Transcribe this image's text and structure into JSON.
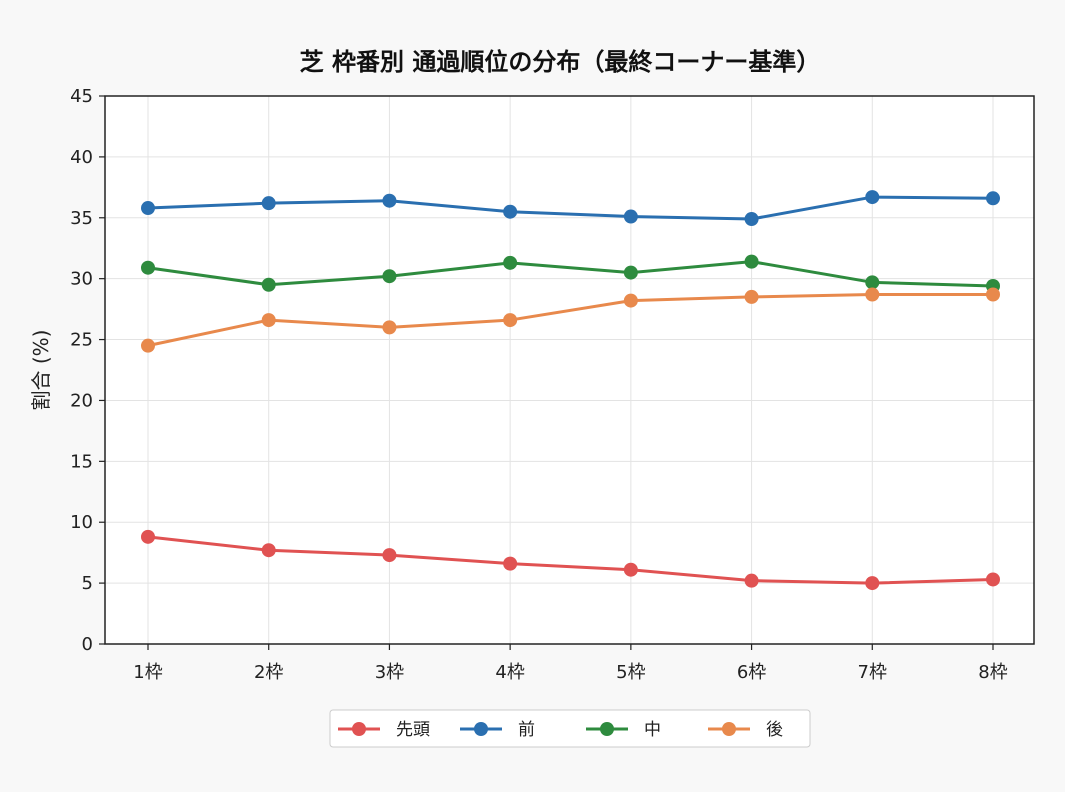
{
  "chart_data": {
    "type": "line",
    "title": "芝 枠番別 通過順位の分布（最終コーナー基準）",
    "xlabel": "",
    "ylabel": "割合 (%)",
    "categories": [
      "1枠",
      "2枠",
      "3枠",
      "4枠",
      "5枠",
      "6枠",
      "7枠",
      "8枠"
    ],
    "ylim": [
      0,
      45
    ],
    "yticks": [
      0,
      5,
      10,
      15,
      20,
      25,
      30,
      35,
      40,
      45
    ],
    "grid": true,
    "legend_position": "bottom-center",
    "series": [
      {
        "name": "先頭",
        "color": "#e05252",
        "values": [
          8.8,
          7.7,
          7.3,
          6.6,
          6.1,
          5.2,
          5.0,
          5.3
        ]
      },
      {
        "name": "前",
        "color": "#2a6fb0",
        "values": [
          35.8,
          36.2,
          36.4,
          35.5,
          35.1,
          34.9,
          36.7,
          36.6
        ]
      },
      {
        "name": "中",
        "color": "#2e8b3e",
        "values": [
          30.9,
          29.5,
          30.2,
          31.3,
          30.5,
          31.4,
          29.7,
          29.4
        ]
      },
      {
        "name": "後",
        "color": "#e8894c",
        "values": [
          24.5,
          26.6,
          26.0,
          26.6,
          28.2,
          28.5,
          28.7,
          28.7
        ]
      }
    ]
  }
}
